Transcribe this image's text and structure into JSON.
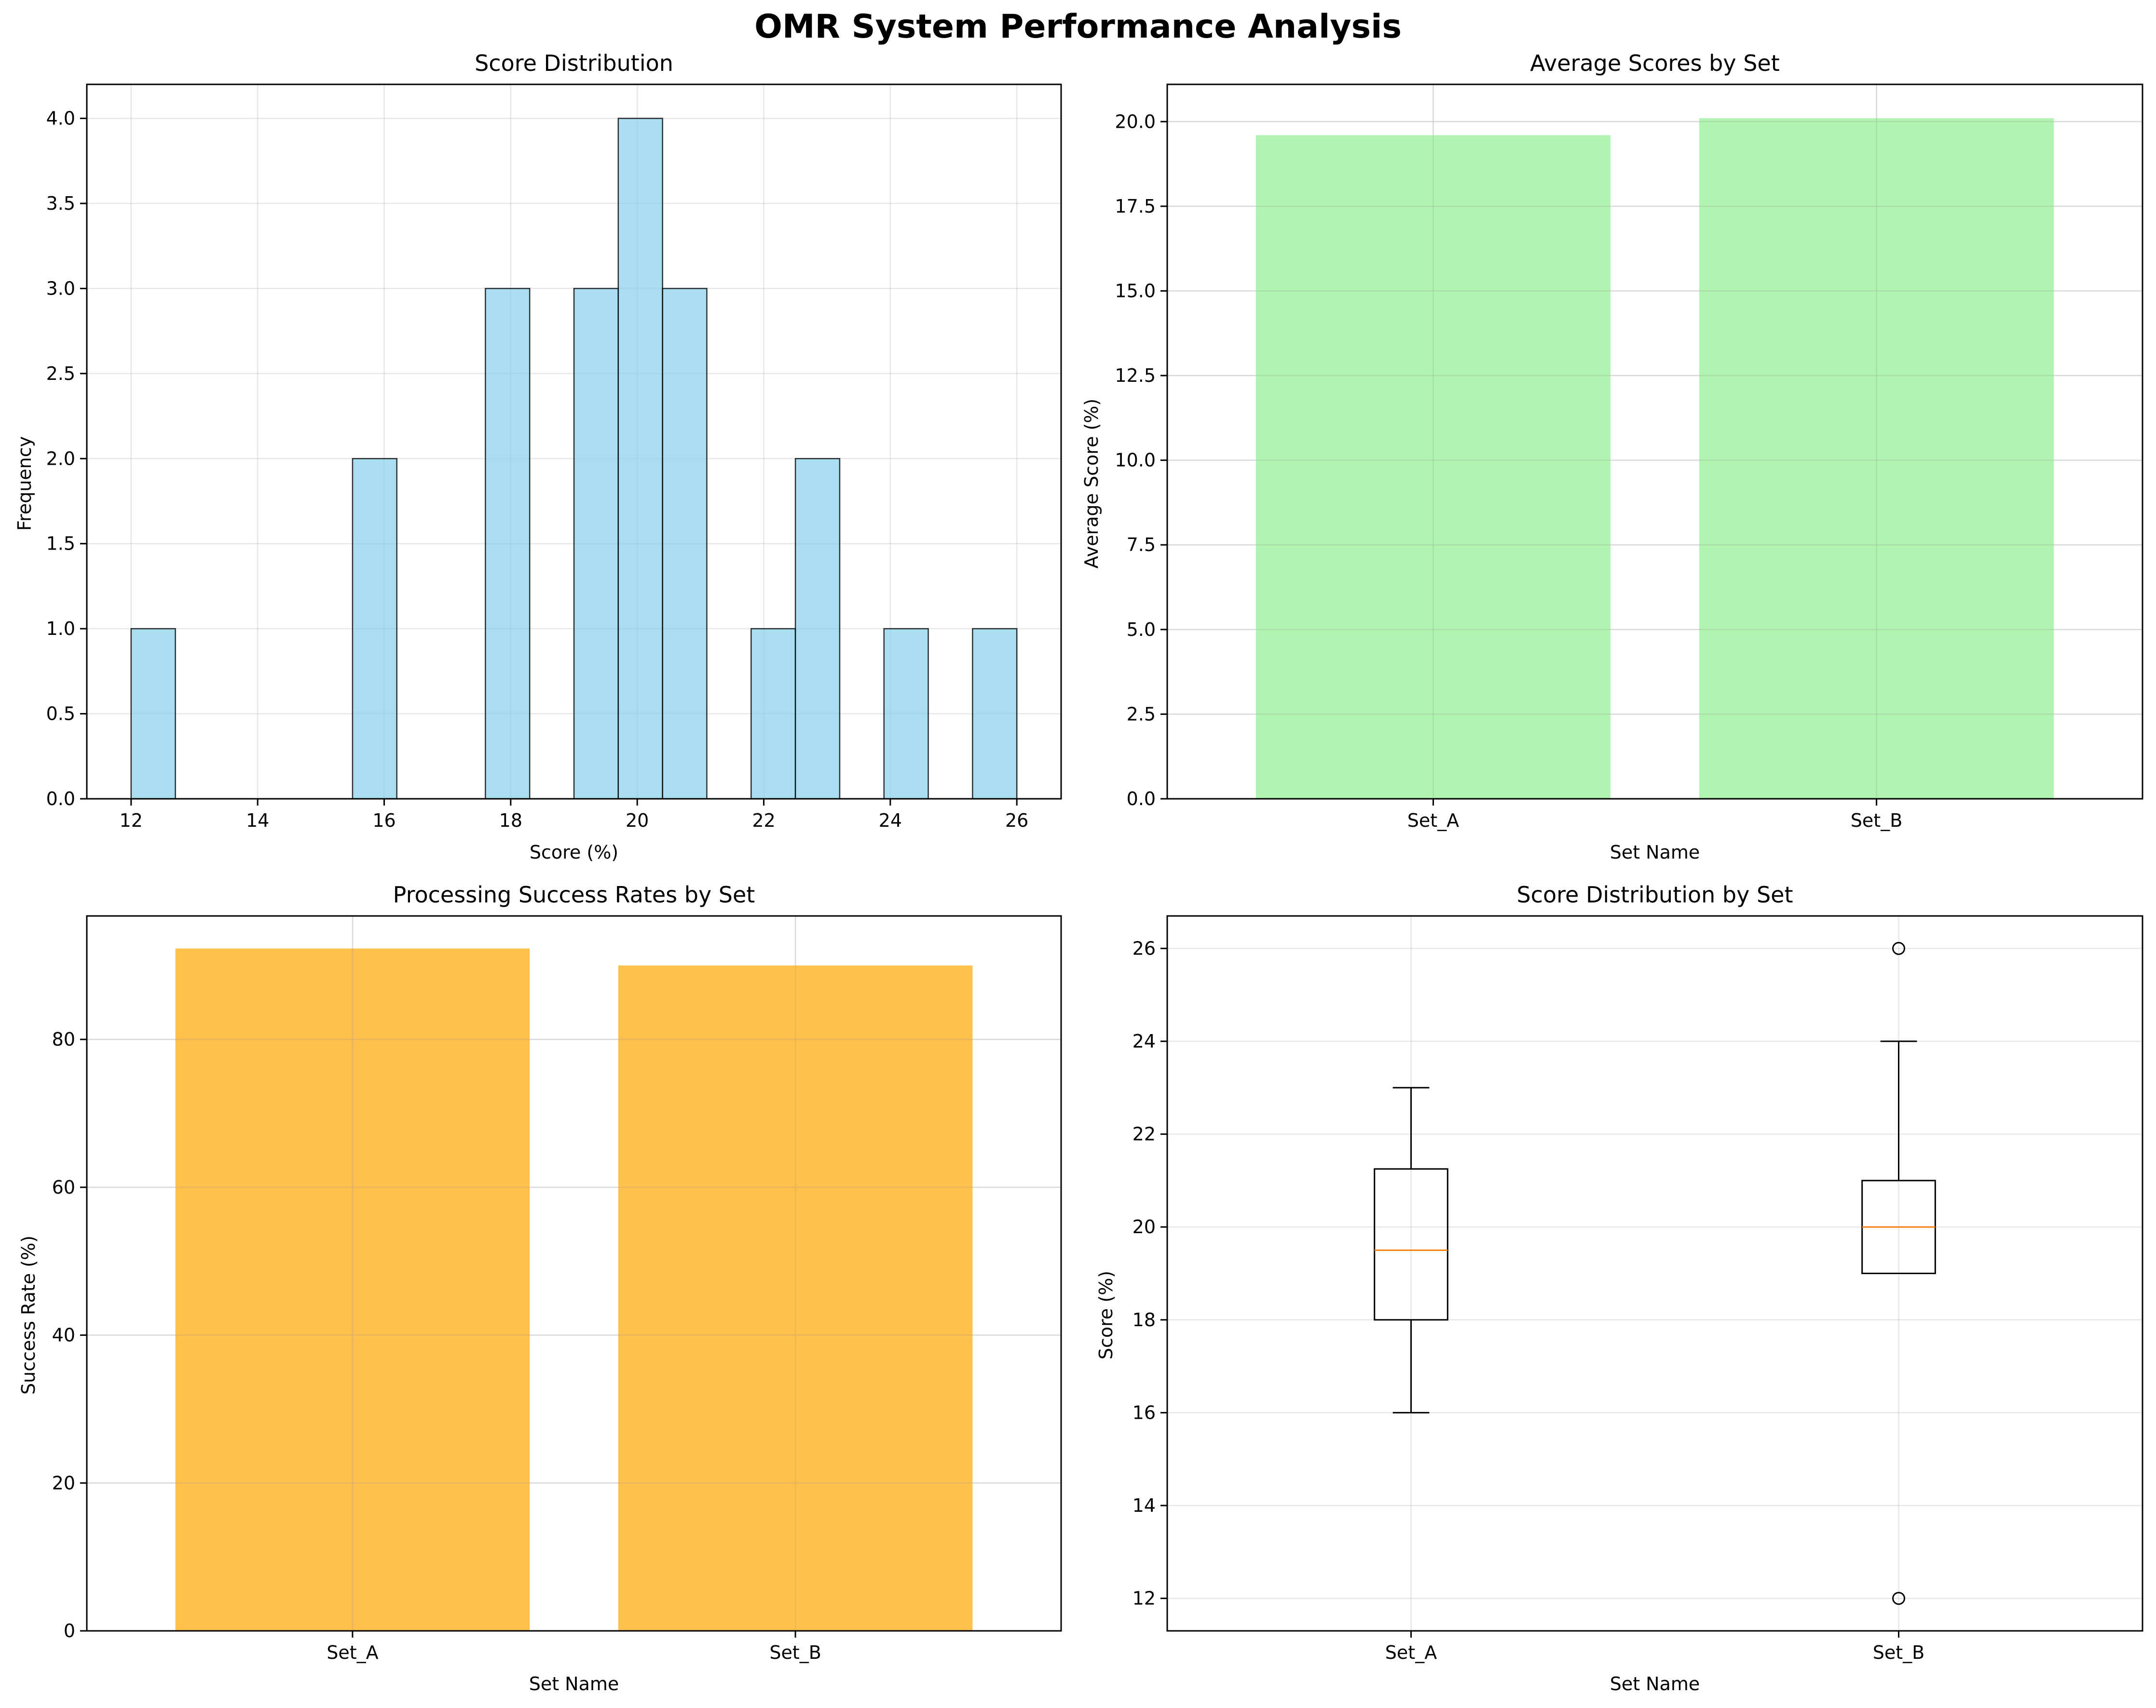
{
  "suptitle": "OMR System Performance Analysis",
  "chart_data": [
    {
      "type": "histogram",
      "title": "Score Distribution",
      "xlabel": "Score (%)",
      "ylabel": "Frequency",
      "xlim": [
        11.3,
        26.7
      ],
      "ylim": [
        0,
        4.2
      ],
      "xticks": [
        "12",
        "14",
        "16",
        "18",
        "20",
        "22",
        "24",
        "26"
      ],
      "yticks": [
        "0.0",
        "0.5",
        "1.0",
        "1.5",
        "2.0",
        "2.5",
        "3.0",
        "3.5",
        "4.0"
      ],
      "bins": [
        {
          "x0": 12.0,
          "x1": 12.7,
          "count": 1
        },
        {
          "x0": 15.5,
          "x1": 16.2,
          "count": 2
        },
        {
          "x0": 17.6,
          "x1": 18.3,
          "count": 3
        },
        {
          "x0": 19.0,
          "x1": 19.7,
          "count": 3
        },
        {
          "x0": 19.7,
          "x1": 20.4,
          "count": 4
        },
        {
          "x0": 20.4,
          "x1": 21.1,
          "count": 3
        },
        {
          "x0": 21.8,
          "x1": 22.5,
          "count": 1
        },
        {
          "x0": 22.5,
          "x1": 23.2,
          "count": 2
        },
        {
          "x0": 23.9,
          "x1": 24.6,
          "count": 1
        },
        {
          "x0": 25.3,
          "x1": 26.0,
          "count": 1
        }
      ],
      "color": "#87ceeb",
      "grid": true
    },
    {
      "type": "bar",
      "title": "Average Scores by Set",
      "xlabel": "Set Name",
      "ylabel": "Average Score (%)",
      "categories": [
        "Set_A",
        "Set_B"
      ],
      "values": [
        19.6,
        20.1
      ],
      "ylim": [
        0,
        21.1
      ],
      "yticks": [
        "0.0",
        "2.5",
        "5.0",
        "7.5",
        "10.0",
        "12.5",
        "15.0",
        "17.5",
        "20.0"
      ],
      "color": "#90ee90",
      "grid": true
    },
    {
      "type": "bar",
      "title": "Processing Success Rates by Set",
      "xlabel": "Set Name",
      "ylabel": "Success Rate (%)",
      "categories": [
        "Set_A",
        "Set_B"
      ],
      "values": [
        92.3,
        90.0
      ],
      "ylim": [
        0,
        96.7
      ],
      "yticks": [
        "0",
        "20",
        "40",
        "60",
        "80"
      ],
      "color": "#ffa500",
      "grid": true
    },
    {
      "type": "box",
      "title": "Score Distribution by Set",
      "xlabel": "Set Name",
      "ylabel": "Score (%)",
      "categories": [
        "Set_A",
        "Set_B"
      ],
      "ylim": [
        11.3,
        26.7
      ],
      "yticks": [
        "12",
        "14",
        "16",
        "18",
        "20",
        "22",
        "24",
        "26"
      ],
      "boxes": [
        {
          "name": "Set_A",
          "whislo": 16,
          "q1": 18,
          "med": 19.5,
          "q3": 21.25,
          "whishi": 23,
          "fliers": []
        },
        {
          "name": "Set_B",
          "whislo": 19,
          "q1": 19,
          "med": 20,
          "q3": 21,
          "whishi": 24,
          "fliers": [
            26,
            12
          ]
        }
      ],
      "median_color": "#ff7f0e",
      "grid": true
    }
  ]
}
